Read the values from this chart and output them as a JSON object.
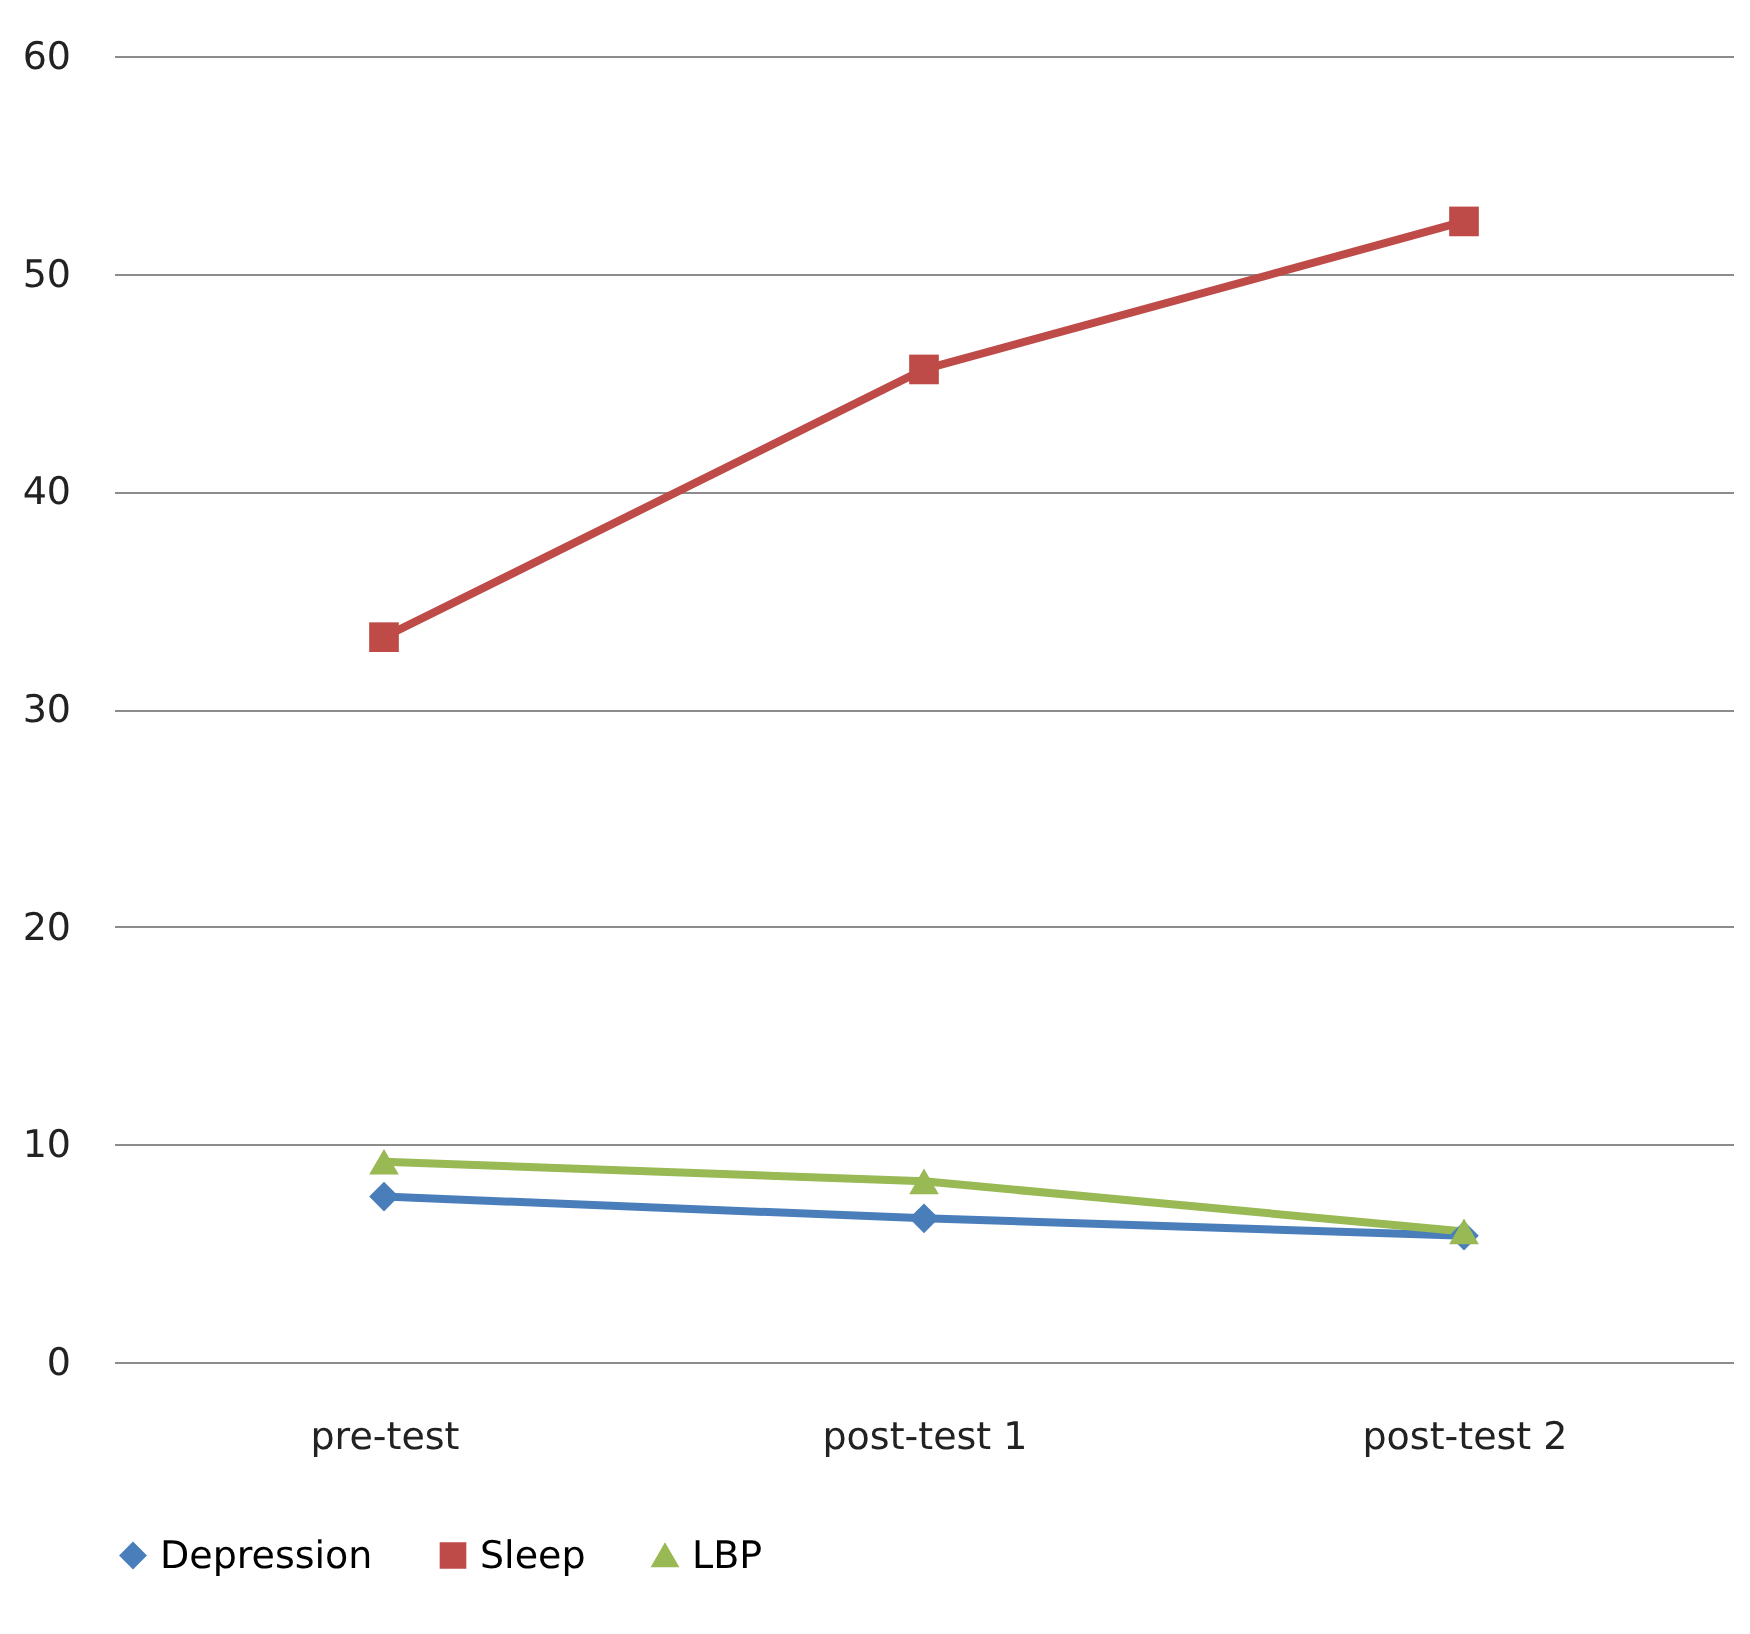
{
  "chart_data": {
    "type": "line",
    "categories": [
      "pre-test",
      "post-test 1",
      "post-test 2"
    ],
    "series": [
      {
        "name": "Depression",
        "color": "#4a7ebb",
        "marker": "diamond",
        "values": [
          7.6,
          6.6,
          5.8
        ]
      },
      {
        "name": "Sleep",
        "color": "#be4b48",
        "marker": "square",
        "values": [
          33.3,
          45.6,
          52.4
        ]
      },
      {
        "name": "LBP",
        "color": "#98b954",
        "marker": "triangle",
        "values": [
          9.2,
          8.3,
          6.0
        ]
      }
    ],
    "ylim": [
      0,
      60
    ],
    "yticks": [
      0,
      10,
      20,
      30,
      40,
      50,
      60
    ],
    "grid": "y",
    "legend": "bottom",
    "line_style": "solid"
  }
}
